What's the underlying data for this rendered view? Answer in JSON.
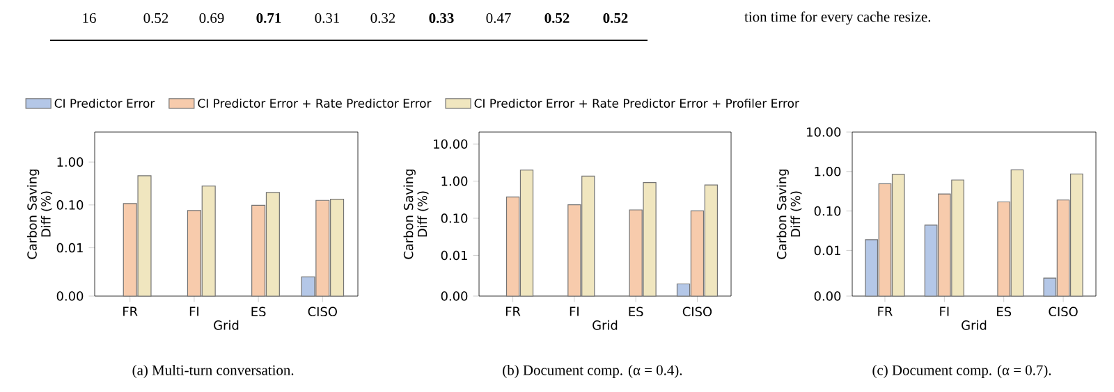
{
  "chart_data": [
    {
      "type": "other",
      "annotations": [
        "16",
        "0.52",
        "0.69",
        "**0.71**",
        "0.31",
        "0.32",
        "**0.33**",
        "0.47",
        "**0.52**",
        "**0.52**",
        "tion time for every cache resize."
      ]
    },
    {
      "type": "bar",
      "title": "(a) Multi-turn conversation.",
      "xlabel": "Grid",
      "ylabel": "Carbon Saving Diff (%)",
      "categories": [
        "FR",
        "FI",
        "ES",
        "CISO"
      ],
      "log": "y",
      "legend": "top",
      "ylim": [
        0.00075,
        5
      ],
      "yticks": [
        {
          "value": 0.00075,
          "label": "0.00"
        },
        {
          "value": 0.01,
          "label": "0.01"
        },
        {
          "value": 0.1,
          "label": "0.10"
        },
        {
          "value": 1,
          "label": "1.00"
        }
      ],
      "series": [
        {
          "name": "CI Predictor Error",
          "color": "#b4c7e7",
          "values": [
            null,
            null,
            null,
            0.0021
          ]
        },
        {
          "name": "CI Predictor Error + Rate Predictor Error",
          "color": "#f7cbac",
          "values": [
            0.108,
            0.074,
            0.098,
            0.128
          ]
        },
        {
          "name": "CI Predictor Error + Rate Predictor Error + Profiler Error",
          "color": "#f0e6bf",
          "values": [
            0.48,
            0.276,
            0.195,
            0.136
          ]
        }
      ]
    },
    {
      "type": "bar",
      "title": "(b) Document comp. (α = 0.4).",
      "xlabel": "Grid",
      "ylabel": "Carbon Saving Diff (%)",
      "categories": [
        "FR",
        "FI",
        "ES",
        "CISO"
      ],
      "log": "y",
      "ylim": [
        0.0008,
        21
      ],
      "yticks": [
        {
          "value": 0.0008,
          "label": "0.00"
        },
        {
          "value": 0.01,
          "label": "0.01"
        },
        {
          "value": 0.1,
          "label": "0.10"
        },
        {
          "value": 1,
          "label": "1.00"
        },
        {
          "value": 10,
          "label": "10.00"
        }
      ],
      "series": [
        {
          "color": "#b4c7e7",
          "values": [
            null,
            null,
            null,
            0.0017
          ]
        },
        {
          "color": "#f7cbac",
          "values": [
            0.376,
            0.23,
            0.168,
            0.158
          ]
        },
        {
          "color": "#f0e6bf",
          "values": [
            2.0,
            1.37,
            0.92,
            0.79
          ]
        }
      ]
    },
    {
      "type": "bar",
      "title": "(c) Document comp. (α = 0.7).",
      "xlabel": "Grid",
      "ylabel": "Carbon Saving Diff (%)",
      "categories": [
        "FR",
        "FI",
        "ES",
        "CISO"
      ],
      "log": "y",
      "ylim": [
        0.0007,
        10
      ],
      "yticks": [
        {
          "value": 0.0007,
          "label": "0.00"
        },
        {
          "value": 0.01,
          "label": "0.01"
        },
        {
          "value": 0.1,
          "label": "0.10"
        },
        {
          "value": 1,
          "label": "1.00"
        },
        {
          "value": 10,
          "label": "10.00"
        }
      ],
      "series": [
        {
          "color": "#b4c7e7",
          "values": [
            0.0188,
            0.044,
            null,
            0.002
          ]
        },
        {
          "color": "#f7cbac",
          "values": [
            0.49,
            0.27,
            0.17,
            0.19
          ]
        },
        {
          "color": "#f0e6bf",
          "values": [
            0.85,
            0.61,
            1.1,
            0.87
          ]
        }
      ]
    }
  ]
}
